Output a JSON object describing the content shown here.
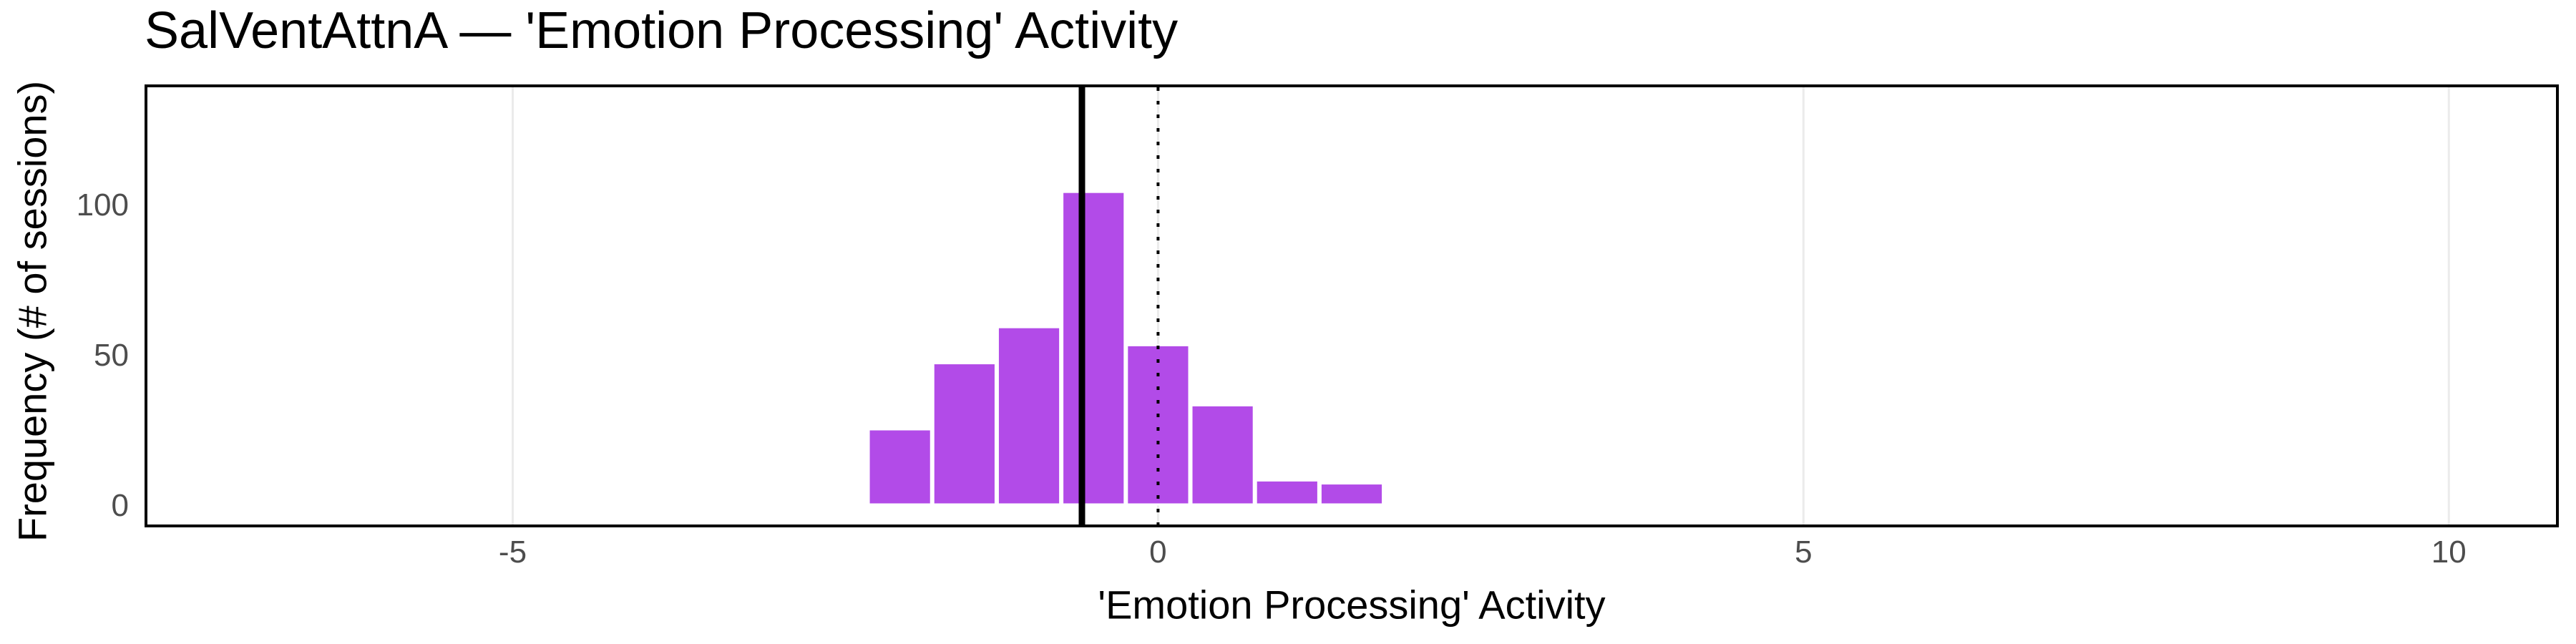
{
  "chart": {
    "title": "SalVentAttnA — 'Emotion Processing' Activity",
    "xlabel": "'Emotion Processing' Activity",
    "ylabel": "Frequency (# of sessions)"
  },
  "chart_data": {
    "type": "bar",
    "subtype": "histogram",
    "title": "SalVentAttnA — 'Emotion Processing' Activity",
    "xlabel": "'Emotion Processing' Activity",
    "ylabel": "Frequency (# of sessions)",
    "bin_start": -2.25,
    "bin_width": 0.5,
    "bin_centers": [
      -2.0,
      -1.5,
      -1.0,
      -0.5,
      0.0,
      0.5,
      1.0,
      1.5
    ],
    "counts": [
      25,
      47,
      59,
      104,
      53,
      33,
      8,
      7
    ],
    "x_ticks": [
      -5,
      0,
      5,
      10
    ],
    "x_tick_labels": [
      "-5",
      "0",
      "5",
      "10"
    ],
    "y_ticks": [
      0,
      50,
      100
    ],
    "y_tick_labels": [
      "0",
      "50",
      "100"
    ],
    "x_range": [
      -7.83,
      10.83
    ],
    "y_range": [
      -6.67,
      138.8
    ],
    "grid": "vertical-major-only",
    "legend": "none",
    "reference_lines": [
      {
        "name": "mean-line",
        "x": -0.59,
        "style": "solid",
        "color": "#000000"
      },
      {
        "name": "zero-line",
        "x": 0,
        "style": "dotted",
        "color": "#000000"
      }
    ],
    "colors": {
      "bar_fill": "#B24BE8",
      "bar_stroke": "#FFFFFF",
      "gridline": "#EBEBEB",
      "tick_label": "#4D4D4D",
      "axis_border": "#000000",
      "background": "#FFFFFF"
    }
  }
}
